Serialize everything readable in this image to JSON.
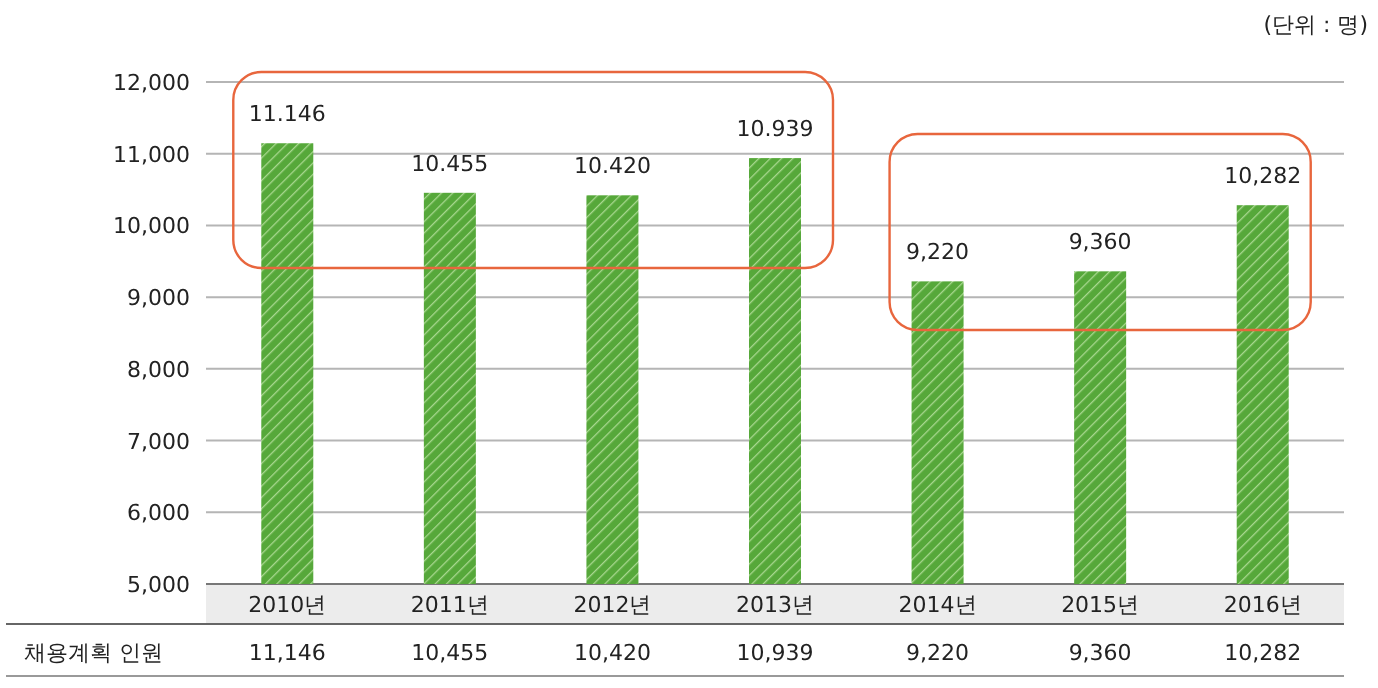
{
  "chart_data": {
    "type": "bar",
    "categories": [
      "2010년",
      "2011년",
      "2012년",
      "2013년",
      "2014년",
      "2015년",
      "2016년"
    ],
    "series": [
      {
        "name": "채용계획 인원",
        "color": "#56a83a",
        "values": [
          11146,
          10455,
          10420,
          10939,
          9220,
          9360,
          10282
        ],
        "value_labels": [
          "11,146",
          "10,455",
          "10,420",
          "10,939",
          "9,220",
          "9,360",
          "10,282"
        ]
      }
    ],
    "ylim": [
      5000,
      12000
    ],
    "yticks": [
      {
        "value": 5000,
        "label": "5,000"
      },
      {
        "value": 6000,
        "label": "6,000"
      },
      {
        "value": 7000,
        "label": "7,000"
      },
      {
        "value": 8000,
        "label": "8,000"
      },
      {
        "value": 9000,
        "label": "9,000"
      },
      {
        "value": 10000,
        "label": "10,000"
      },
      {
        "value": 11000,
        "label": "11,000"
      },
      {
        "value": 12000,
        "label": "12,000"
      }
    ],
    "grid": "y",
    "annotations": [
      "(단위 : 명)",
      {
        "text": "11.146",
        "x": "2010년",
        "y": 11146
      },
      {
        "text": "10.455",
        "x": "2011년",
        "y": 10455
      },
      {
        "text": "10.420",
        "x": "2012년",
        "y": 10420
      },
      {
        "text": "10.939",
        "x": "2013년",
        "y": 10939
      },
      {
        "text": "9,220",
        "x": "2014년",
        "y": 9220
      },
      {
        "text": "9,360",
        "x": "2015년",
        "y": 9360
      },
      {
        "text": "10,282",
        "x": "2016년",
        "y": 10282
      }
    ]
  }
}
